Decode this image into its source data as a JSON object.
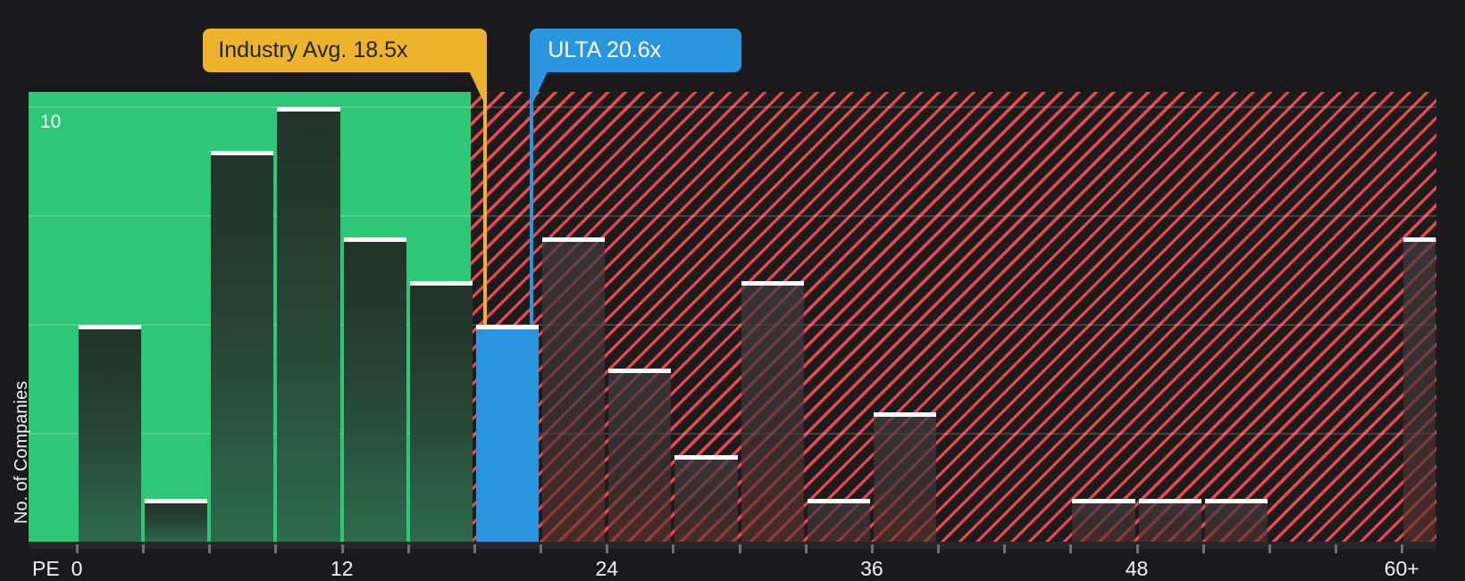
{
  "callouts": {
    "industry": {
      "label": "Industry Avg. 18.5x",
      "value": 18.5,
      "color": "#eeb32d"
    },
    "ulta": {
      "label": "ULTA 20.6x",
      "value": 20.6,
      "color": "#2b96e0"
    }
  },
  "y_axis": {
    "title": "No. of Companies",
    "top_tick_label": "10"
  },
  "x_axis": {
    "title": "PE"
  },
  "colors": {
    "page_bg": "#1a191b",
    "green_zone": "#2ec778",
    "hatch_stripe": "#e9494f",
    "hatch_bg": "#1e1b1c",
    "highlight_blue": "#2b96e0",
    "marker_gold": "#eeb32d",
    "bar_cap": "#ffffff"
  },
  "chart_data": {
    "type": "bar",
    "title": "",
    "xlabel": "PE",
    "ylabel": "No. of Companies",
    "ylim": [
      0,
      10.35
    ],
    "grid": "horizontal every 2.5, lines at 2.5 / 5 / 7.5 / 10",
    "y_labeled_tick": 10,
    "x_tick_marks_every": 3,
    "x_tick_labels": [
      {
        "value": 0,
        "label": "0"
      },
      {
        "value": 12,
        "label": "12"
      },
      {
        "value": 24,
        "label": "24"
      },
      {
        "value": 36,
        "label": "36"
      },
      {
        "value": 48,
        "label": "48"
      },
      {
        "value": 60,
        "label": "60+"
      }
    ],
    "zones": {
      "green_upto": 18,
      "red_hatch_from": 18,
      "meaning": "green = PE below industry average zone, red hatch = above"
    },
    "bins": [
      {
        "from": 0,
        "to": 3,
        "count": 5
      },
      {
        "from": 3,
        "to": 6,
        "count": 1
      },
      {
        "from": 6,
        "to": 9,
        "count": 9
      },
      {
        "from": 9,
        "to": 12,
        "count": 10
      },
      {
        "from": 12,
        "to": 15,
        "count": 7
      },
      {
        "from": 15,
        "to": 18,
        "count": 6
      },
      {
        "from": 18,
        "to": 21,
        "count": 5,
        "highlight": "ULTA"
      },
      {
        "from": 21,
        "to": 24,
        "count": 7
      },
      {
        "from": 24,
        "to": 27,
        "count": 4
      },
      {
        "from": 27,
        "to": 30,
        "count": 2
      },
      {
        "from": 30,
        "to": 33,
        "count": 6
      },
      {
        "from": 33,
        "to": 36,
        "count": 1
      },
      {
        "from": 36,
        "to": 39,
        "count": 3
      },
      {
        "from": 39,
        "to": 42,
        "count": 0
      },
      {
        "from": 42,
        "to": 45,
        "count": 0
      },
      {
        "from": 45,
        "to": 48,
        "count": 1
      },
      {
        "from": 48,
        "to": 51,
        "count": 1
      },
      {
        "from": 51,
        "to": 54,
        "count": 1
      },
      {
        "from": 54,
        "to": 57,
        "count": 0
      },
      {
        "from": 57,
        "to": 60,
        "count": 0
      },
      {
        "from": 60,
        "to": 61.6,
        "count": 7,
        "label": "60+"
      }
    ],
    "markers": [
      {
        "label": "Industry Avg. 18.5x",
        "value": 18.5
      },
      {
        "label": "ULTA 20.6x",
        "value": 20.6
      }
    ]
  }
}
